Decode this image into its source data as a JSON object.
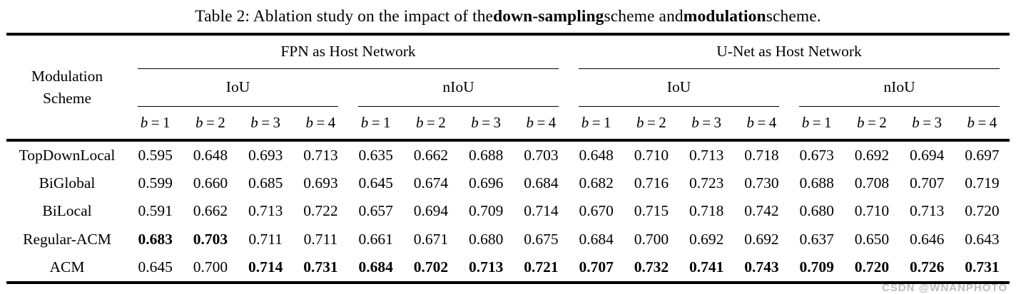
{
  "caption": {
    "prefix": "Table 2: Ablation study on the impact of the ",
    "bold1": "down-sampling",
    "mid": " scheme and ",
    "bold2": "modulation",
    "suffix": " scheme."
  },
  "header": {
    "col1_lines": [
      "Modulation",
      "Scheme"
    ],
    "groups": [
      {
        "label": "FPN as Host Network",
        "subgroups": [
          "IoU",
          "nIoU"
        ]
      },
      {
        "label": "U-Net as Host Network",
        "subgroups": [
          "IoU",
          "nIoU"
        ]
      }
    ],
    "b_var": "b",
    "eq": "=",
    "b_values": [
      "1",
      "2",
      "3",
      "4"
    ]
  },
  "rows": [
    {
      "label": "TopDownLocal",
      "values": [
        "0.595",
        "0.648",
        "0.693",
        "0.713",
        "0.635",
        "0.662",
        "0.688",
        "0.703",
        "0.648",
        "0.710",
        "0.713",
        "0.718",
        "0.673",
        "0.692",
        "0.694",
        "0.697"
      ],
      "bold": [
        0,
        0,
        0,
        0,
        0,
        0,
        0,
        0,
        0,
        0,
        0,
        0,
        0,
        0,
        0,
        0
      ]
    },
    {
      "label": "BiGlobal",
      "values": [
        "0.599",
        "0.660",
        "0.685",
        "0.693",
        "0.645",
        "0.674",
        "0.696",
        "0.684",
        "0.682",
        "0.716",
        "0.723",
        "0.730",
        "0.688",
        "0.708",
        "0.707",
        "0.719"
      ],
      "bold": [
        0,
        0,
        0,
        0,
        0,
        0,
        0,
        0,
        0,
        0,
        0,
        0,
        0,
        0,
        0,
        0
      ]
    },
    {
      "label": "BiLocal",
      "values": [
        "0.591",
        "0.662",
        "0.713",
        "0.722",
        "0.657",
        "0.694",
        "0.709",
        "0.714",
        "0.670",
        "0.715",
        "0.718",
        "0.742",
        "0.680",
        "0.710",
        "0.713",
        "0.720"
      ],
      "bold": [
        0,
        0,
        0,
        0,
        0,
        0,
        0,
        0,
        0,
        0,
        0,
        0,
        0,
        0,
        0,
        0
      ]
    },
    {
      "label": "Regular-ACM",
      "values": [
        "0.683",
        "0.703",
        "0.711",
        "0.711",
        "0.661",
        "0.671",
        "0.680",
        "0.675",
        "0.684",
        "0.700",
        "0.692",
        "0.692",
        "0.637",
        "0.650",
        "0.646",
        "0.643"
      ],
      "bold": [
        1,
        1,
        0,
        0,
        0,
        0,
        0,
        0,
        0,
        0,
        0,
        0,
        0,
        0,
        0,
        0
      ]
    },
    {
      "label": "ACM",
      "values": [
        "0.645",
        "0.700",
        "0.714",
        "0.731",
        "0.684",
        "0.702",
        "0.713",
        "0.721",
        "0.707",
        "0.732",
        "0.741",
        "0.743",
        "0.709",
        "0.720",
        "0.726",
        "0.731"
      ],
      "bold": [
        0,
        0,
        1,
        1,
        1,
        1,
        1,
        1,
        1,
        1,
        1,
        1,
        1,
        1,
        1,
        1
      ]
    }
  ],
  "watermark": {
    "text": "CSDN @WNANPHOTO",
    "color": "#bdbdbd"
  }
}
